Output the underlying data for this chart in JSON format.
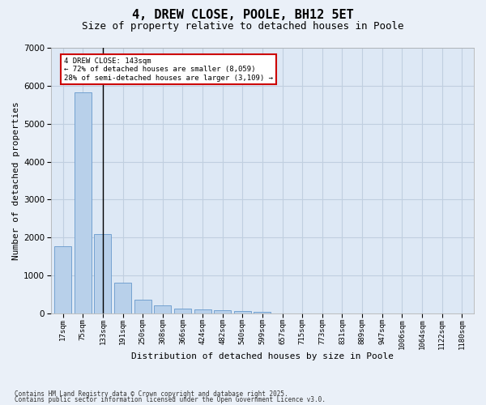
{
  "title1": "4, DREW CLOSE, POOLE, BH12 5ET",
  "title2": "Size of property relative to detached houses in Poole",
  "xlabel": "Distribution of detached houses by size in Poole",
  "ylabel": "Number of detached properties",
  "categories": [
    "17sqm",
    "75sqm",
    "133sqm",
    "191sqm",
    "250sqm",
    "308sqm",
    "366sqm",
    "424sqm",
    "482sqm",
    "540sqm",
    "599sqm",
    "657sqm",
    "715sqm",
    "773sqm",
    "831sqm",
    "889sqm",
    "947sqm",
    "1006sqm",
    "1064sqm",
    "1122sqm",
    "1180sqm"
  ],
  "values": [
    1780,
    5820,
    2090,
    820,
    370,
    210,
    130,
    100,
    80,
    55,
    35,
    0,
    0,
    0,
    0,
    0,
    0,
    0,
    0,
    0,
    0
  ],
  "bar_color": "#b8d0ea",
  "bar_edge_color": "#6699cc",
  "highlight_bar_index": 2,
  "annotation_line1": "4 DREW CLOSE: 143sqm",
  "annotation_line2": "← 72% of detached houses are smaller (8,059)",
  "annotation_line3": "28% of semi-detached houses are larger (3,109) →",
  "annotation_box_edgecolor": "#cc0000",
  "ylim": [
    0,
    7000
  ],
  "yticks": [
    0,
    1000,
    2000,
    3000,
    4000,
    5000,
    6000,
    7000
  ],
  "plot_bg_color": "#dde8f5",
  "fig_bg_color": "#eaf0f8",
  "grid_color": "#c0cfe0",
  "footnote1": "Contains HM Land Registry data © Crown copyright and database right 2025.",
  "footnote2": "Contains public sector information licensed under the Open Government Licence v3.0."
}
